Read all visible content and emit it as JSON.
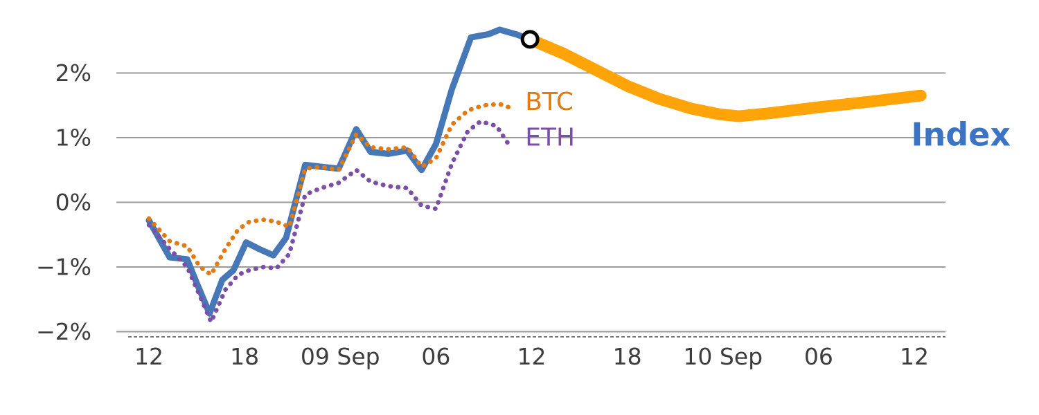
{
  "chart_data": {
    "type": "line",
    "title": "",
    "xlabel": "",
    "ylabel": "",
    "grid": "horizontal",
    "legend_position": "inline-annotations",
    "ylim": [
      -2.2,
      2.9
    ],
    "y_ticks": [
      {
        "value": 2,
        "label": "2%"
      },
      {
        "value": 1,
        "label": "1%"
      },
      {
        "value": 0,
        "label": "0%"
      },
      {
        "value": -1,
        "label": "−1%"
      },
      {
        "value": -2,
        "label": "−2%"
      }
    ],
    "x_ticks": [
      {
        "hour": 0,
        "label": "12"
      },
      {
        "hour": 6,
        "label": "18"
      },
      {
        "hour": 12,
        "label": "09 Sep"
      },
      {
        "hour": 18,
        "label": "06"
      },
      {
        "hour": 24,
        "label": "12"
      },
      {
        "hour": 30,
        "label": "18"
      },
      {
        "hour": 36,
        "label": "10 Sep"
      },
      {
        "hour": 42,
        "label": "06"
      },
      {
        "hour": 48,
        "label": "12"
      }
    ],
    "colors": {
      "index": "#4678b8",
      "index_projection": "#ffa408",
      "btc": "#e07b14",
      "eth": "#7b4fa6",
      "grid": "#9a9a9a",
      "axis_text": "#3d3d3d",
      "marker_stroke": "#000000",
      "marker_fill": "#ffffff"
    },
    "series": [
      {
        "name": "Index",
        "color": "#4678b8",
        "style": "solid",
        "width": 9,
        "points": [
          [
            0,
            -0.28
          ],
          [
            1.3,
            -0.85
          ],
          [
            2.4,
            -0.88
          ],
          [
            3.0,
            -1.25
          ],
          [
            3.8,
            -1.72
          ],
          [
            4.6,
            -1.2
          ],
          [
            5.3,
            -1.05
          ],
          [
            6.1,
            -0.62
          ],
          [
            6.9,
            -0.72
          ],
          [
            7.8,
            -0.82
          ],
          [
            8.6,
            -0.55
          ],
          [
            9.8,
            0.58
          ],
          [
            10.8,
            0.55
          ],
          [
            11.9,
            0.52
          ],
          [
            13.0,
            1.13
          ],
          [
            13.9,
            0.78
          ],
          [
            15.0,
            0.75
          ],
          [
            16.2,
            0.8
          ],
          [
            17.1,
            0.5
          ],
          [
            18.0,
            0.9
          ],
          [
            19.0,
            1.75
          ],
          [
            20.2,
            2.55
          ],
          [
            21.3,
            2.6
          ],
          [
            22.0,
            2.67
          ],
          [
            23.0,
            2.6
          ],
          [
            23.9,
            2.52
          ]
        ]
      },
      {
        "name": "Index projection",
        "color": "#ffa408",
        "style": "solid",
        "width": 17,
        "points": [
          [
            23.9,
            2.52
          ],
          [
            26,
            2.3
          ],
          [
            28,
            2.05
          ],
          [
            30,
            1.8
          ],
          [
            32,
            1.6
          ],
          [
            34,
            1.45
          ],
          [
            35.8,
            1.36
          ],
          [
            37,
            1.33
          ],
          [
            39,
            1.38
          ],
          [
            42,
            1.47
          ],
          [
            45,
            1.55
          ],
          [
            48.4,
            1.65
          ]
        ]
      },
      {
        "name": "BTC",
        "color": "#e07b14",
        "style": "dotted",
        "width": 6.5,
        "points": [
          [
            0,
            -0.25
          ],
          [
            1.3,
            -0.6
          ],
          [
            2.4,
            -0.68
          ],
          [
            3.2,
            -1.0
          ],
          [
            3.9,
            -1.12
          ],
          [
            4.8,
            -0.72
          ],
          [
            5.6,
            -0.42
          ],
          [
            6.3,
            -0.3
          ],
          [
            7.2,
            -0.27
          ],
          [
            8.0,
            -0.3
          ],
          [
            8.8,
            -0.38
          ],
          [
            9.8,
            0.52
          ],
          [
            10.8,
            0.55
          ],
          [
            11.9,
            0.5
          ],
          [
            13.0,
            1.05
          ],
          [
            13.9,
            0.85
          ],
          [
            15.0,
            0.82
          ],
          [
            16.2,
            0.85
          ],
          [
            17.1,
            0.55
          ],
          [
            18.0,
            0.68
          ],
          [
            19.0,
            1.2
          ],
          [
            20.0,
            1.42
          ],
          [
            21.0,
            1.5
          ],
          [
            22.0,
            1.52
          ],
          [
            22.8,
            1.45
          ]
        ]
      },
      {
        "name": "ETH",
        "color": "#7b4fa6",
        "style": "dotted",
        "width": 6.5,
        "points": [
          [
            0,
            -0.35
          ],
          [
            1.3,
            -0.72
          ],
          [
            2.4,
            -1.0
          ],
          [
            3.2,
            -1.45
          ],
          [
            3.9,
            -1.85
          ],
          [
            4.8,
            -1.35
          ],
          [
            5.6,
            -1.12
          ],
          [
            6.3,
            -1.05
          ],
          [
            7.2,
            -1.0
          ],
          [
            8.0,
            -1.02
          ],
          [
            8.8,
            -0.8
          ],
          [
            9.8,
            0.12
          ],
          [
            10.8,
            0.22
          ],
          [
            11.9,
            0.3
          ],
          [
            13.0,
            0.5
          ],
          [
            13.9,
            0.32
          ],
          [
            15.0,
            0.25
          ],
          [
            16.2,
            0.22
          ],
          [
            17.1,
            -0.05
          ],
          [
            18.0,
            -0.1
          ],
          [
            19.0,
            0.6
          ],
          [
            20.0,
            1.1
          ],
          [
            20.8,
            1.25
          ],
          [
            21.8,
            1.18
          ],
          [
            22.6,
            0.88
          ]
        ]
      }
    ],
    "annotations": [
      {
        "text": "BTC",
        "color": "#e07b14",
        "x_hour": 23.6,
        "value": 1.55,
        "bold": false
      },
      {
        "text": "ETH",
        "color": "#7b4fa6",
        "x_hour": 23.6,
        "value": 1.0,
        "bold": false
      },
      {
        "text": "Index",
        "color": "#3c74c4",
        "x_hour": 47.8,
        "value": 1.05,
        "bold": true
      }
    ],
    "marker": {
      "x_hour": 23.9,
      "value": 2.52,
      "radius": 11
    }
  }
}
